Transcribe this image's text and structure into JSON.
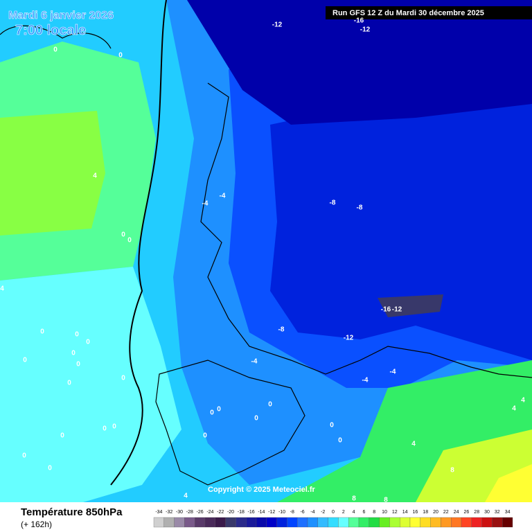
{
  "header": {
    "date": "Mardi 6 janvier 2026",
    "time": "7:00 locale",
    "run": "Run GFS 12 Z du Mardi 30 décembre 2025"
  },
  "map": {
    "contour_labels": [
      "-12",
      "-16",
      "-12",
      "0",
      "0",
      "4",
      "-4",
      "-4",
      "-8",
      "-8",
      "0",
      "0",
      "4",
      "-8",
      "-16",
      "-12",
      "-12",
      "0",
      "0",
      "0",
      "0",
      "0",
      "0",
      "-4",
      "-4",
      "-4",
      "0",
      "0",
      "0",
      "0",
      "0",
      "0",
      "0",
      "0",
      "0",
      "0",
      "0",
      "0",
      "0",
      "0",
      "4",
      "8",
      "4",
      "8",
      "8",
      "4",
      "4"
    ],
    "copyright": "Copyright © 2025 Meteociel.fr"
  },
  "footer": {
    "title": "Température 850hPa",
    "lead": "(+ 162h)"
  },
  "legend": {
    "ticks": [
      -34,
      -32,
      -30,
      -28,
      -26,
      -24,
      -22,
      -20,
      -18,
      -16,
      -14,
      -12,
      -10,
      -8,
      -6,
      -4,
      -2,
      0,
      2,
      4,
      6,
      8,
      10,
      12,
      14,
      16,
      18,
      20,
      22,
      24,
      26,
      28,
      30,
      32,
      34
    ],
    "colors": [
      "#d0d0d0",
      "#b0b0b0",
      "#9a8aa8",
      "#7a5a8a",
      "#5a3a6a",
      "#4a2a5a",
      "#3a1a4a",
      "#38386a",
      "#2a2a8a",
      "#1a1a9a",
      "#0a0aaa",
      "#0000c8",
      "#0022dd",
      "#0044ff",
      "#1e70ff",
      "#1e90ff",
      "#33bbff",
      "#33ddff",
      "#66ffff",
      "#55ff99",
      "#33ee66",
      "#22dd44",
      "#66ee22",
      "#aaff33",
      "#ddff33",
      "#ffff33",
      "#ffdd22",
      "#ffbb22",
      "#ff9922",
      "#ff7722",
      "#ff4422",
      "#ee2222",
      "#cc1111",
      "#991111",
      "#660000"
    ]
  }
}
